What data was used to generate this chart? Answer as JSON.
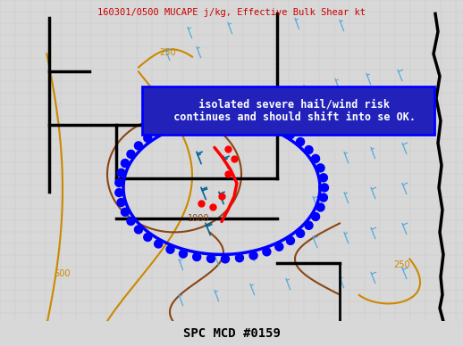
{
  "title_top": "160301/0500 MUCAPE j/kg, Effective Bulk Shear kt",
  "title_bottom": "SPC MCD #0159",
  "title_top_color": "#cc0000",
  "title_bottom_color": "#000000",
  "annotation_text": "  isolated severe hail/wind risk\n  continues and should shift into se OK.",
  "annotation_color": "#0000ff",
  "annotation_bg": "#2222bb",
  "annotation_border": "#0000ff",
  "figsize": [
    5.18,
    3.88
  ],
  "dpi": 100,
  "map_bg": "#f0f0ee",
  "county_color": "#c8c8c8",
  "state_color": "#000000",
  "orange_contour_color": "#cc8800",
  "brown_contour_color": "#8B4513",
  "mcd_color": "#0000ff",
  "front_color": "#ff0000",
  "barb_light_color": "#55aadd",
  "barb_dark_color": "#3366aa",
  "barb_teal_color": "#006699"
}
